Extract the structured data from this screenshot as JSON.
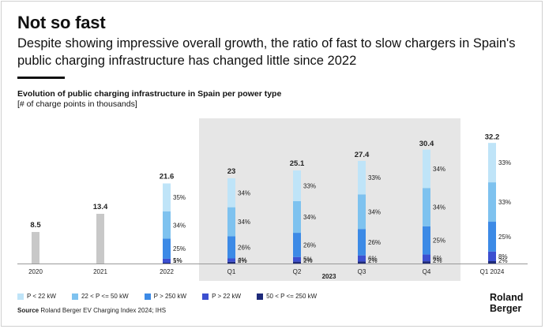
{
  "header": {
    "title": "Not so fast",
    "subtitle": "Despite showing impressive overall growth, the ratio of fast to slow chargers in Spain's public charging infrastructure has changed little since 2022"
  },
  "chart_data": {
    "type": "bar",
    "title": "Evolution of public charging infrastructure in Spain per power type",
    "unit_label": "[# of charge points in thousands]",
    "categories": [
      "2020",
      "2021",
      "2022",
      "Q1",
      "Q2",
      "Q3",
      "Q4",
      "Q1 2024"
    ],
    "group_label": "2023",
    "group_categories": [
      "Q1",
      "Q2",
      "Q3",
      "Q4"
    ],
    "totals": [
      8.5,
      13.4,
      21.6,
      23,
      25.1,
      27.4,
      30.4,
      32.2
    ],
    "total_labels": [
      "8.5",
      "13.4",
      "21.6",
      "23",
      "25.1",
      "27.4",
      "30.4",
      "32.2"
    ],
    "ylim": [
      0,
      34
    ],
    "series": [
      {
        "name": "50 < P <= 250 kW",
        "color": "#1e2a7a",
        "values": [
          null,
          null,
          1,
          2,
          2,
          2,
          2,
          2
        ],
        "labels": [
          null,
          null,
          "1%",
          "2%",
          "2%",
          "2%",
          "2%",
          "2%"
        ]
      },
      {
        "name": "P > 22 kW",
        "color": "#3c4fd0",
        "values": [
          null,
          null,
          5,
          4,
          5,
          6,
          6,
          8
        ],
        "labels": [
          null,
          null,
          "5%",
          "4%",
          "5%",
          "6%",
          "6%",
          "8%"
        ]
      },
      {
        "name": "P > 250 kW",
        "color": "#3c8ae6",
        "values": [
          null,
          null,
          25,
          26,
          26,
          26,
          25,
          25
        ],
        "labels": [
          null,
          null,
          "25%",
          "26%",
          "26%",
          "26%",
          "25%",
          "25%"
        ]
      },
      {
        "name": "22 < P <= 50 kW",
        "color": "#7ec2ef",
        "values": [
          null,
          null,
          34,
          34,
          34,
          34,
          34,
          33
        ],
        "labels": [
          null,
          null,
          "34%",
          "34%",
          "34%",
          "34%",
          "34%",
          "33%"
        ]
      },
      {
        "name": "P < 22 kW",
        "color": "#bfe4f8",
        "values": [
          null,
          null,
          35,
          34,
          33,
          33,
          34,
          33
        ],
        "labels": [
          null,
          null,
          "35%",
          "34%",
          "33%",
          "33%",
          "34%",
          "33%"
        ]
      }
    ],
    "legend": [
      "P < 22 kW",
      "22 < P <= 50 kW",
      "P > 250 kW",
      "P > 22 kW",
      "50 < P <= 250 kW"
    ],
    "single_series_color": "#c8c8c8",
    "highlight_color": "#e6e6e6"
  },
  "footer": {
    "source_label": "Source",
    "source_text": "Roland Berger EV Charging Index 2024; IHS",
    "logo_line1": "Roland",
    "logo_line2": "Berger"
  }
}
